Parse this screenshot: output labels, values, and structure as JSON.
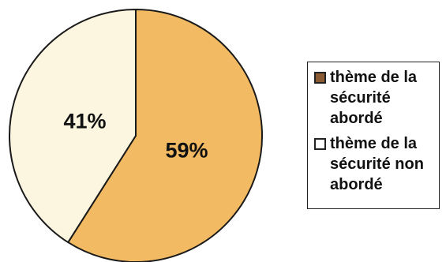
{
  "chart_data": {
    "type": "pie",
    "slices": [
      {
        "name": "thème de la sécurité abordé",
        "value": 59,
        "label": "59%",
        "color": "#f2ba62",
        "swatch_color": "#8a5a32"
      },
      {
        "name": "thème de la sécurité non abordé",
        "value": 41,
        "label": "41%",
        "color": "#fcf6e0",
        "swatch_color": "#ffffff"
      }
    ],
    "start_angle_deg": 0,
    "direction": "clockwise",
    "legend": {
      "position": "right",
      "items": [
        "thème de la sécurité abordé",
        "thème de la sécurité non abordé"
      ]
    },
    "title": "",
    "outline_color": "#1a1a1a"
  }
}
